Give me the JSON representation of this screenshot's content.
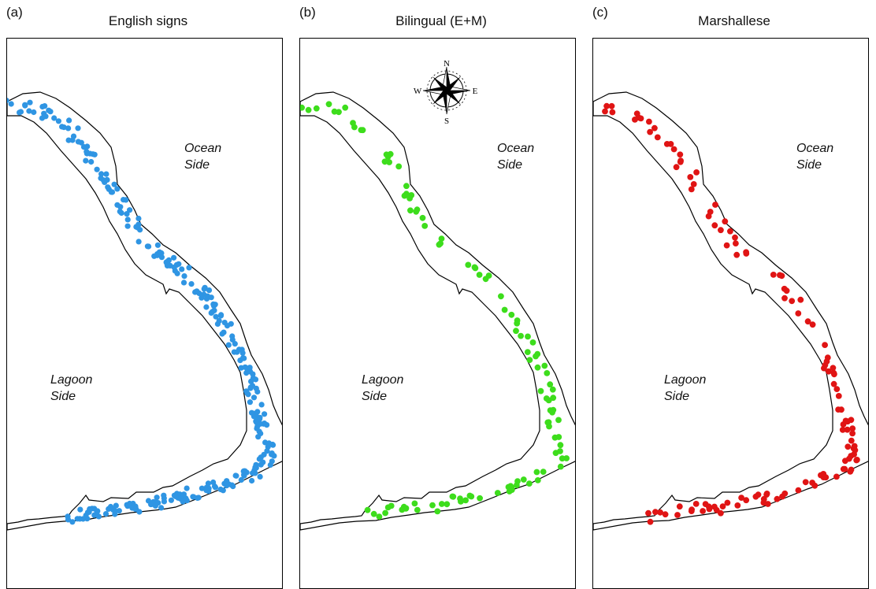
{
  "panels": [
    {
      "letter": "(a)",
      "title": "English signs",
      "color": "#2f95e3",
      "dot_count": 300
    },
    {
      "letter": "(b)",
      "title": "Bilingual (E+M)",
      "color": "#3ddd1c",
      "dot_count": 110
    },
    {
      "letter": "(c)",
      "title": "Marshallese",
      "color": "#e01414",
      "dot_count": 125
    }
  ],
  "labels": {
    "ocean_1": "Ocean",
    "ocean_2": "Side",
    "lagoon_1": "Lagoon",
    "lagoon_2": "Side"
  },
  "compass": {
    "n": "N",
    "s": "S",
    "e": "E",
    "w": "W"
  }
}
